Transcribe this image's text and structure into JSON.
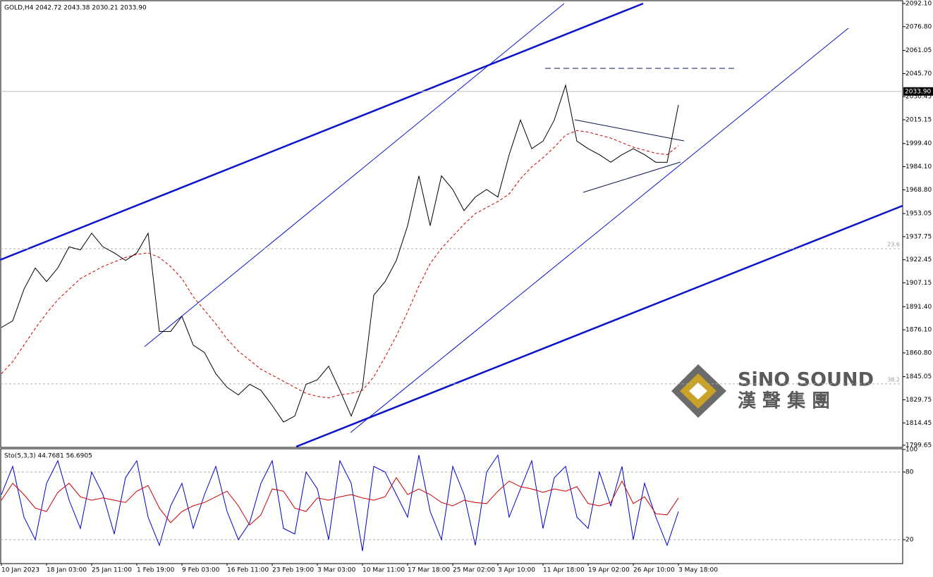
{
  "chart_data": [
    {
      "type": "line",
      "title": "GOLD,H4  2042.72 2043.38 2030.21 2033.90",
      "categories": [
        "10 Jan 2023",
        null,
        null,
        null,
        "18 Jan 03:00",
        null,
        null,
        null,
        "25 Jan 11:00",
        null,
        null,
        null,
        "1 Feb 19:00",
        null,
        null,
        null,
        "9 Feb 03:00",
        null,
        null,
        null,
        "16 Feb 11:00",
        null,
        null,
        null,
        "23 Feb 19:00",
        null,
        null,
        null,
        "3 Mar 03:00",
        null,
        null,
        null,
        "10 Mar 11:00",
        null,
        null,
        null,
        "17 Mar 18:00",
        null,
        null,
        null,
        "25 Mar 02:00",
        null,
        null,
        null,
        "3 Apr 10:00",
        null,
        null,
        null,
        "11 Apr 18:00",
        null,
        null,
        null,
        "19 Apr 02:00",
        null,
        null,
        null,
        "26 Apr 10:00",
        null,
        null,
        null,
        "3 May 18:00"
      ],
      "series": [
        {
          "color": "#000000",
          "values": [
            1877.6,
            1882,
            1903,
            1917,
            1908,
            1917,
            1931,
            1929,
            1940,
            1931,
            1927,
            1922,
            1927,
            1940,
            1875,
            1875,
            1885,
            1866,
            1861,
            1847,
            1838,
            1833,
            1840,
            1836,
            1826,
            1815,
            1819,
            1840,
            1843,
            1852,
            1836,
            1819,
            1838,
            1899,
            1908,
            1922,
            1945,
            1978,
            1945,
            1978,
            1969,
            1955,
            1964,
            1969,
            1964,
            1992,
            2015,
            1996,
            2001,
            2015,
            2038,
            2001,
            1996,
            1992,
            1987,
            1992,
            1996,
            1992,
            1987,
            1987,
            2025
          ]
        },
        {
          "color": "#cc0000",
          "dashed": true,
          "values": [
            1847,
            1855,
            1866,
            1877,
            1887,
            1896,
            1903,
            1910,
            1914,
            1918,
            1921,
            1924,
            1926,
            1927,
            1924,
            1918,
            1910,
            1898,
            1889,
            1880,
            1870,
            1862,
            1856,
            1850,
            1846,
            1842,
            1838,
            1834,
            1832,
            1831,
            1833,
            1834,
            1836,
            1845,
            1858,
            1872,
            1888,
            1905,
            1920,
            1930,
            1938,
            1946,
            1953,
            1957,
            1961,
            1966,
            1976,
            1984,
            1990,
            1997,
            2005,
            2008,
            2007,
            2005,
            2003,
            2000,
            1997,
            1995,
            1993,
            1992,
            1998
          ]
        }
      ],
      "ylim": [
        1799.65,
        2092.1
      ],
      "yticks": [
        {
          "value": 2092.1,
          "label": "2092.10"
        },
        {
          "value": 2076.8,
          "label": "2076.80"
        },
        {
          "value": 2061.05,
          "label": "2061.05"
        },
        {
          "value": 2045.7,
          "label": "2045.70"
        },
        {
          "value": 2030.45,
          "label": "2030.45"
        },
        {
          "value": 2015.15,
          "label": "2015.15"
        },
        {
          "value": 1999.4,
          "label": "1999.40"
        },
        {
          "value": 1984.1,
          "label": "1984.10"
        },
        {
          "value": 1968.8,
          "label": "1968.80"
        },
        {
          "value": 1953.05,
          "label": "1953.05"
        },
        {
          "value": 1937.75,
          "label": "1937.75"
        },
        {
          "value": 1922.45,
          "label": "1922.45"
        },
        {
          "value": 1907.15,
          "label": "1907.15"
        },
        {
          "value": 1891.4,
          "label": "1891.40"
        },
        {
          "value": 1876.1,
          "label": "1876.10"
        },
        {
          "value": 1860.8,
          "label": "1860.80"
        },
        {
          "value": 1845.05,
          "label": "1845.05"
        },
        {
          "value": 1829.75,
          "label": "1829.75"
        },
        {
          "value": 1814.45,
          "label": "1814.45"
        },
        {
          "value": 1799.65,
          "label": "1799.65"
        }
      ],
      "current_price": {
        "value": 2033.9,
        "label": "2033.90"
      },
      "levels": [
        {
          "value": 1929.8,
          "label": "23.6"
        },
        {
          "value": 1840.3,
          "label": "38.2"
        }
      ],
      "watermark": {
        "name": "SiNO SOUND",
        "chinese": "漢 聲 集 團"
      }
    },
    {
      "type": "line",
      "title": "Sto(5,3,3) 44.7681 56.6905",
      "series": [
        {
          "color": "#0000cc",
          "values": [
            60,
            85,
            40,
            20,
            70,
            90,
            55,
            30,
            80,
            60,
            25,
            75,
            90,
            40,
            15,
            50,
            70,
            30,
            60,
            85,
            45,
            20,
            35,
            70,
            90,
            30,
            25,
            80,
            65,
            20,
            90,
            70,
            10,
            85,
            80,
            60,
            40,
            95,
            45,
            20,
            85,
            60,
            15,
            80,
            95,
            40,
            65,
            90,
            30,
            75,
            85,
            40,
            30,
            80,
            50,
            85,
            20,
            70,
            40,
            15,
            45
          ]
        },
        {
          "color": "#cc0000",
          "values": [
            55,
            70,
            60,
            48,
            45,
            62,
            70,
            58,
            55,
            57,
            55,
            53,
            63,
            68,
            48,
            35,
            45,
            50,
            53,
            58,
            63,
            50,
            33,
            42,
            65,
            63,
            48,
            45,
            57,
            55,
            58,
            60,
            57,
            55,
            58,
            75,
            60,
            65,
            60,
            53,
            50,
            55,
            53,
            52,
            63,
            72,
            67,
            65,
            62,
            65,
            63,
            67,
            52,
            50,
            53,
            72,
            52,
            58,
            43,
            42,
            57
          ]
        }
      ],
      "ylim": [
        0,
        100
      ],
      "yticks": [
        20,
        80,
        100
      ]
    }
  ]
}
